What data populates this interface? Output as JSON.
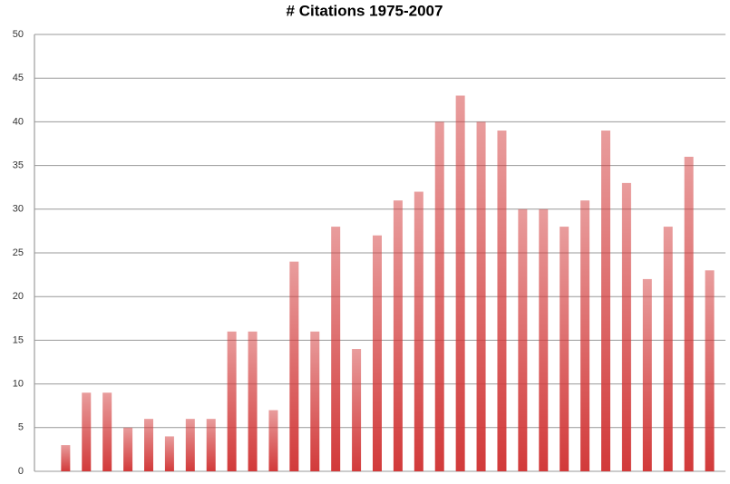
{
  "chart_data": {
    "type": "bar",
    "title": "# Citations 1975-2007",
    "categories": [
      null,
      null,
      null,
      null,
      null,
      null,
      null,
      null,
      null,
      null,
      null,
      null,
      null,
      null,
      null,
      null,
      null,
      null,
      null,
      null,
      null,
      null,
      null,
      null,
      null,
      null,
      null,
      null,
      null,
      null,
      null,
      null,
      null
    ],
    "values": [
      0,
      3,
      9,
      9,
      5,
      6,
      4,
      6,
      6,
      16,
      16,
      7,
      24,
      16,
      28,
      14,
      27,
      31,
      32,
      40,
      43,
      40,
      39,
      30,
      30,
      28,
      31,
      39,
      33,
      22,
      28,
      36,
      23
    ],
    "color": "#d23a3a",
    "ylim": [
      0,
      50
    ],
    "yticks": [
      0,
      5,
      10,
      15,
      20,
      25,
      30,
      35,
      40,
      45,
      50
    ],
    "grid": true
  }
}
